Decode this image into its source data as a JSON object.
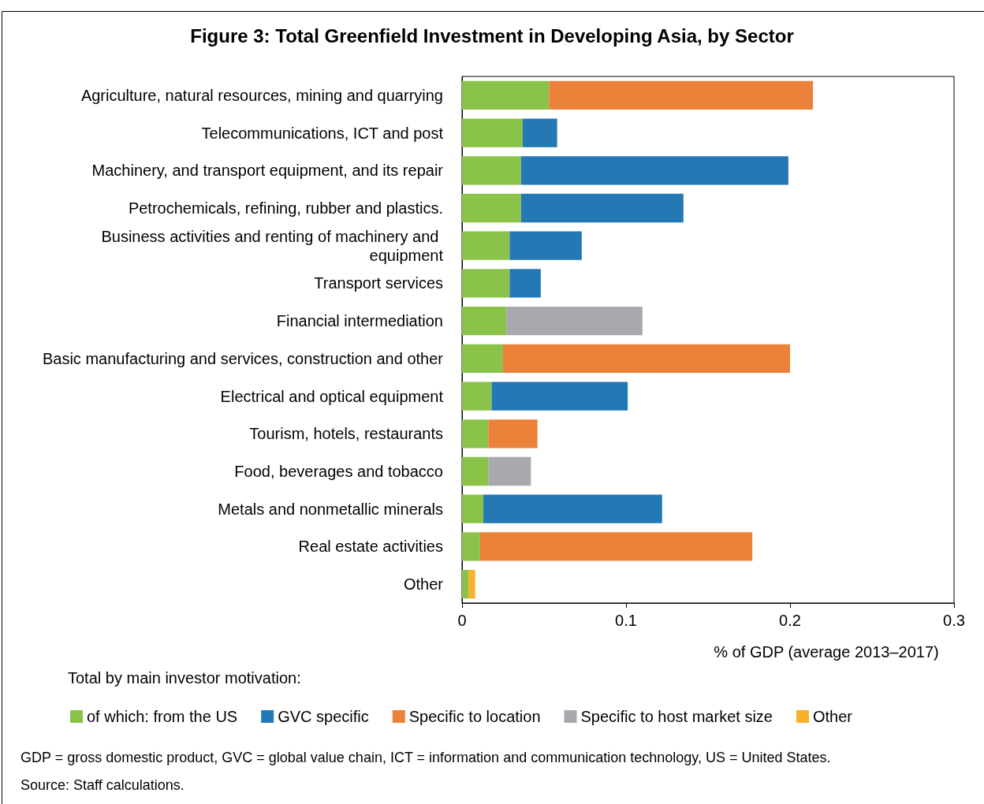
{
  "chart_data": {
    "type": "bar",
    "orientation": "horizontal",
    "stacked": true,
    "title": "Figure 3: Total Greenfield Investment in Developing Asia, by Sector",
    "categories": [
      "Agriculture, natural resources, mining and quarrying",
      "Telecommunications, ICT and post",
      "Machinery, and transport equipment, and its repair",
      "Petrochemicals, refining, rubber and plastics.",
      "Business activities and renting of machinery and equipment",
      "Transport services",
      "Financial intermediation",
      "Basic manufacturing and services, construction and other",
      "Electrical and optical equipment",
      "Tourism, hotels, restaurants",
      "Food, beverages and tobacco",
      "Metals and nonmetallic minerals",
      "Real estate activities",
      "Other"
    ],
    "series": [
      {
        "name": "of which: from the US",
        "color": "#8bc34a",
        "values": [
          0.053,
          0.037,
          0.036,
          0.036,
          0.029,
          0.029,
          0.027,
          0.025,
          0.018,
          0.016,
          0.016,
          0.013,
          0.011,
          0.004
        ]
      },
      {
        "name": "GVC specific",
        "color": "#2479b4",
        "values": [
          null,
          0.021,
          0.163,
          0.099,
          0.044,
          0.019,
          null,
          null,
          0.083,
          null,
          null,
          0.109,
          null,
          null
        ]
      },
      {
        "name": "Specific to location",
        "color": "#ec823a",
        "values": [
          0.161,
          null,
          null,
          null,
          null,
          null,
          null,
          0.175,
          null,
          0.03,
          null,
          null,
          0.166,
          null
        ]
      },
      {
        "name": "Specific to host market size",
        "color": "#a7a9ac",
        "values": [
          null,
          null,
          null,
          null,
          null,
          null,
          0.083,
          null,
          null,
          null,
          0.026,
          null,
          null,
          null
        ]
      },
      {
        "name": "Other",
        "color": "#f5b22a",
        "values": [
          null,
          null,
          null,
          null,
          null,
          null,
          null,
          null,
          null,
          null,
          null,
          null,
          null,
          0.004
        ]
      }
    ],
    "xlabel": "% of GDP (average 2013–2017)",
    "xlim": [
      0,
      0.3
    ],
    "xticks": [
      0,
      0.1,
      0.2,
      0.3
    ],
    "legend_title": "Total by main investor motivation:",
    "legend": "bottom",
    "grid": false,
    "annotations": [
      "GDP = gross domestic product, GVC = global value chain, ICT = information and communication technology, US = United States.",
      "Source: Staff calculations."
    ]
  }
}
